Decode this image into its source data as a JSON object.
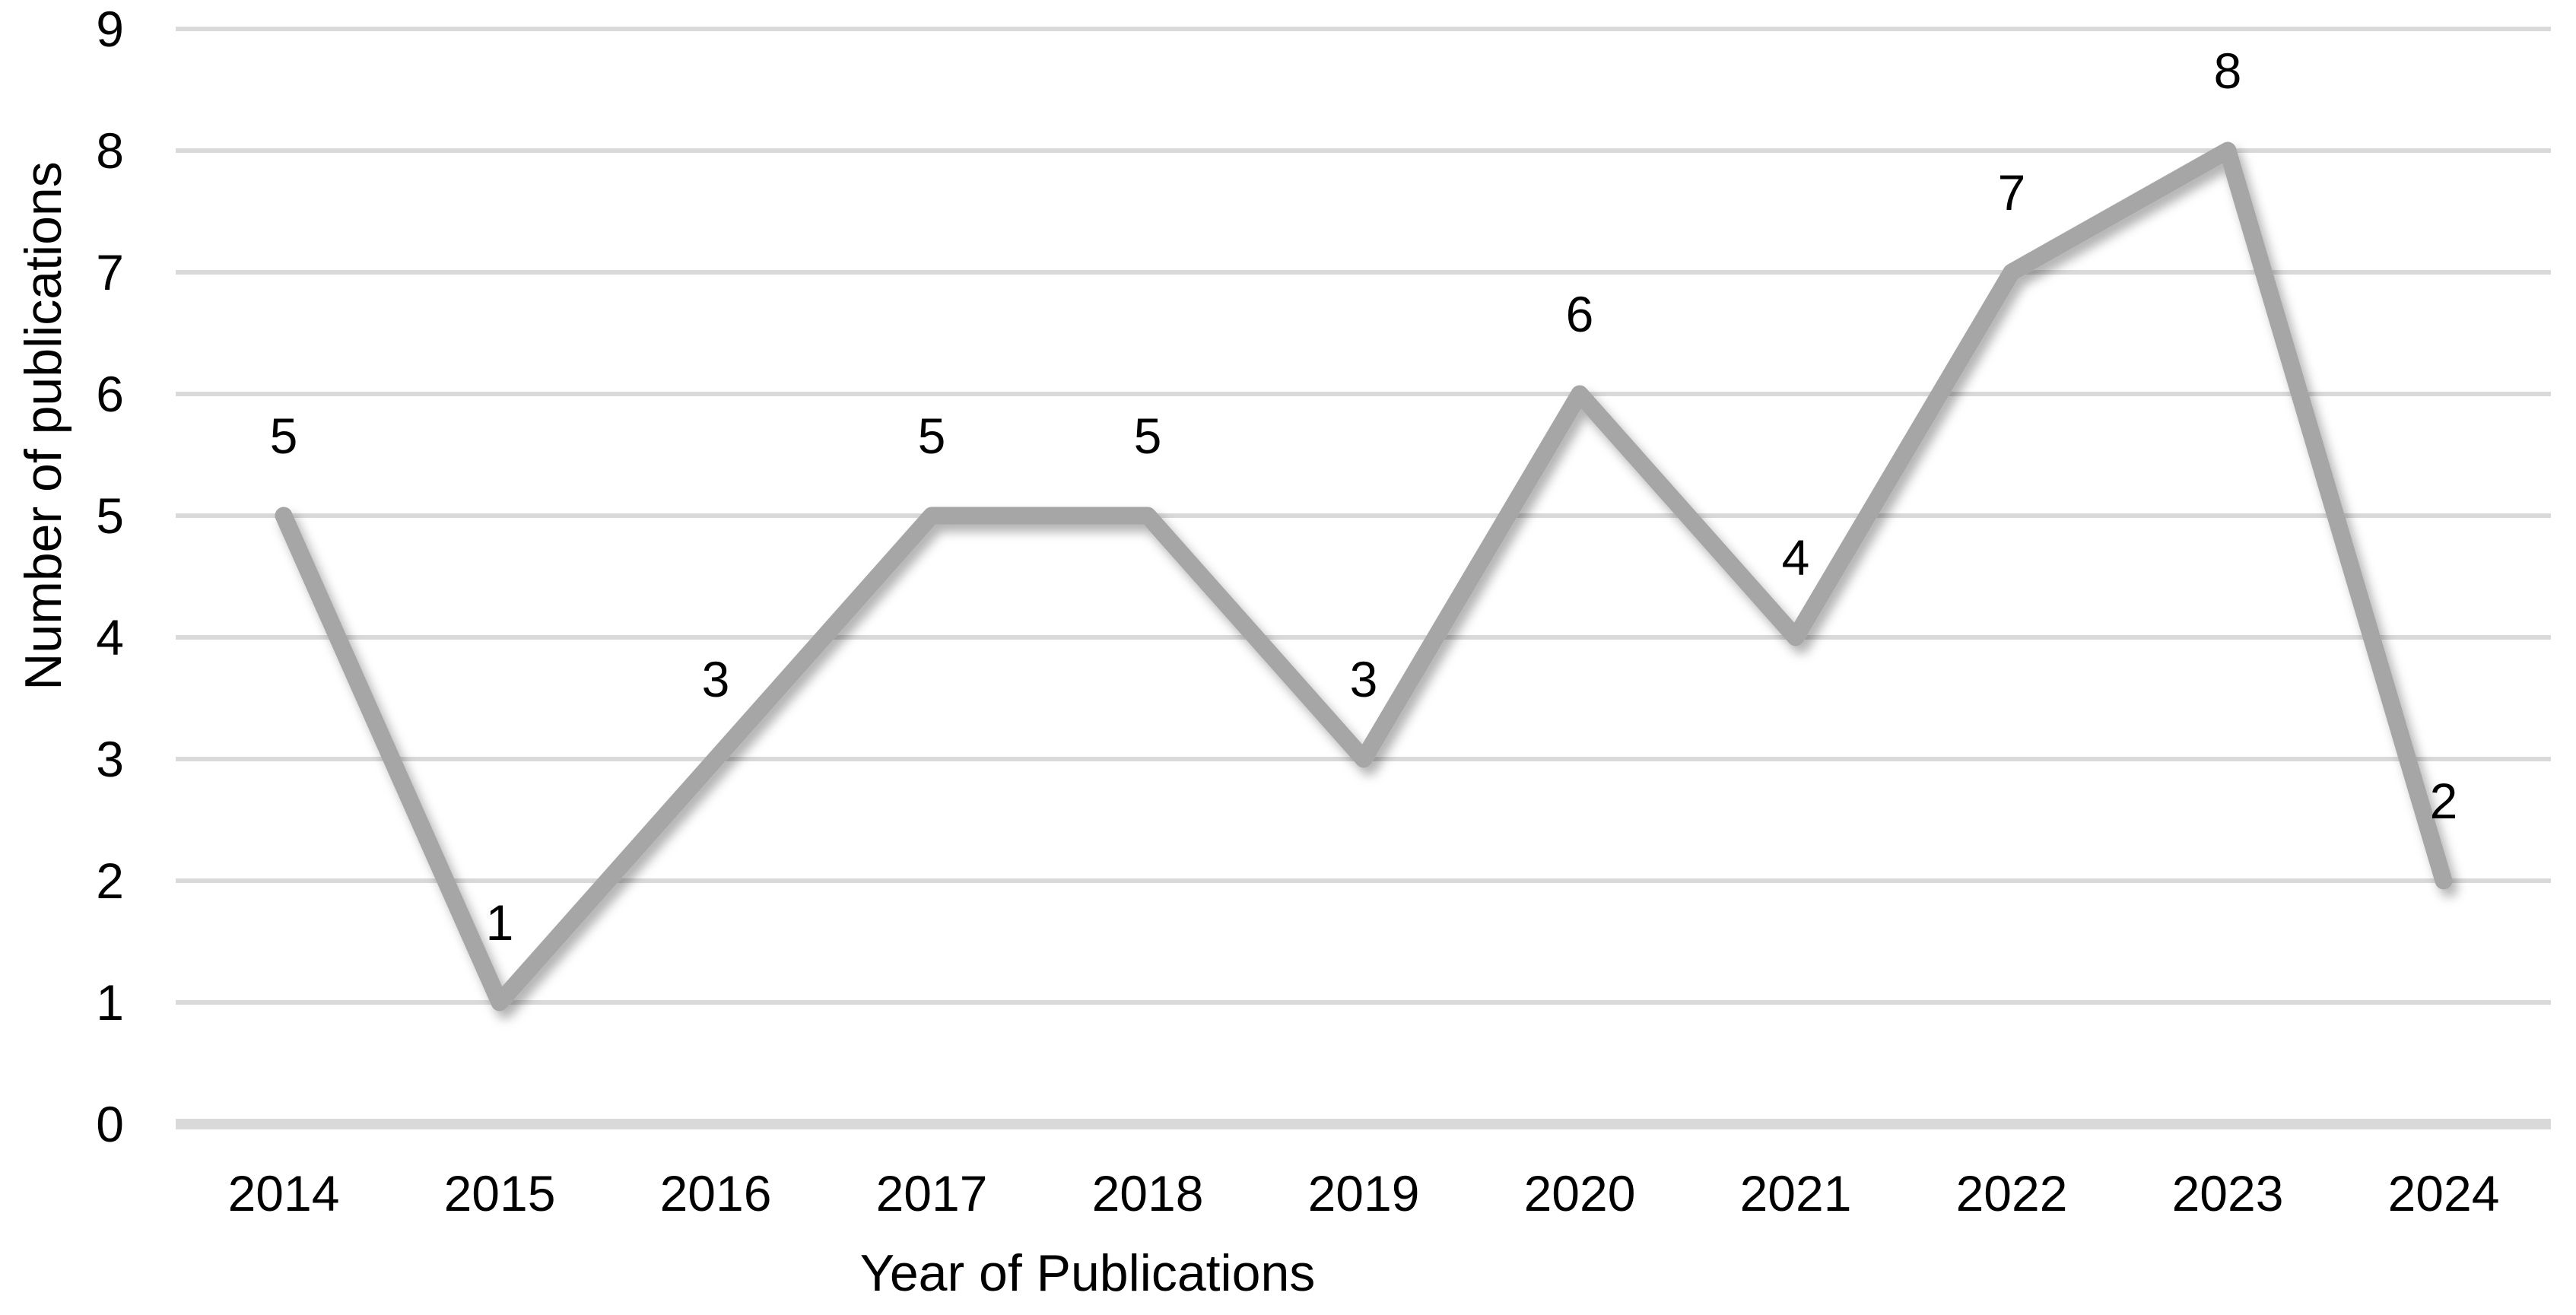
{
  "chart_data": {
    "type": "line",
    "categories": [
      "2014",
      "2015",
      "2016",
      "2017",
      "2018",
      "2019",
      "2020",
      "2021",
      "2022",
      "2023",
      "2024"
    ],
    "values": [
      5,
      1,
      3,
      5,
      5,
      3,
      6,
      4,
      7,
      8,
      2
    ],
    "data_labels": [
      "5",
      "1",
      "3",
      "5",
      "5",
      "3",
      "6",
      "4",
      "7",
      "8",
      "2"
    ],
    "data_label_position": "above",
    "xlabel": "Year of Publications",
    "ylabel": "Number of publications",
    "ylim": [
      0,
      9
    ],
    "yticks": [
      "0",
      "1",
      "2",
      "3",
      "4",
      "5",
      "6",
      "7",
      "8",
      "9"
    ],
    "grid": "horizontal",
    "legend": "none",
    "line_color": "#a6a6a6",
    "line_shadow": true,
    "gridline_color": "#d9d9d9",
    "axis_line_color": "#d9d9d9",
    "text_color": "#000000"
  }
}
